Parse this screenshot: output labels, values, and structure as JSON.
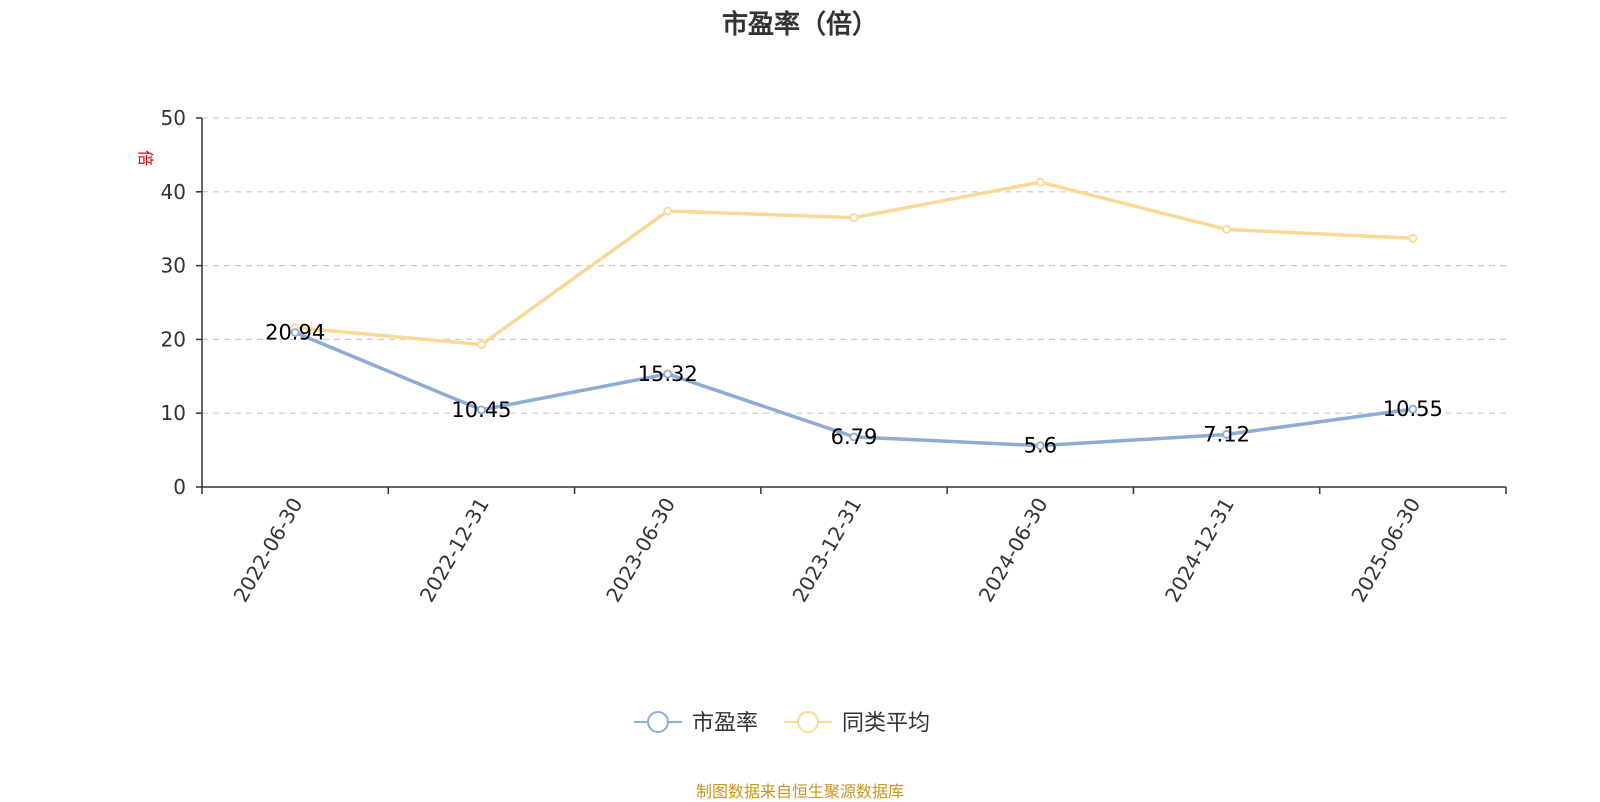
{
  "chart_data": {
    "type": "line",
    "title": "市盈率（倍）",
    "ylabel": "倍",
    "xlabel": "",
    "categories": [
      "2022-06-30",
      "2022-12-31",
      "2023-06-30",
      "2023-12-31",
      "2024-06-30",
      "2024-12-31",
      "2025-06-30"
    ],
    "ylim": [
      0,
      50
    ],
    "yticks": [
      0,
      10,
      20,
      30,
      40,
      50
    ],
    "grid": true,
    "legend_position": "bottom-center",
    "series": [
      {
        "name": "市盈率",
        "color": "#8eacd6",
        "values": [
          20.94,
          10.45,
          15.32,
          6.79,
          5.6,
          7.12,
          10.55
        ],
        "data_labels": [
          "20.94",
          "10.45",
          "15.32",
          "6.79",
          "5.6",
          "7.12",
          "10.55"
        ]
      },
      {
        "name": "同类平均",
        "color": "#f9d996",
        "values": [
          21.6,
          19.3,
          37.4,
          36.5,
          41.3,
          34.9,
          33.7
        ]
      }
    ]
  },
  "source_note": "制图数据来自恒生聚源数据库"
}
